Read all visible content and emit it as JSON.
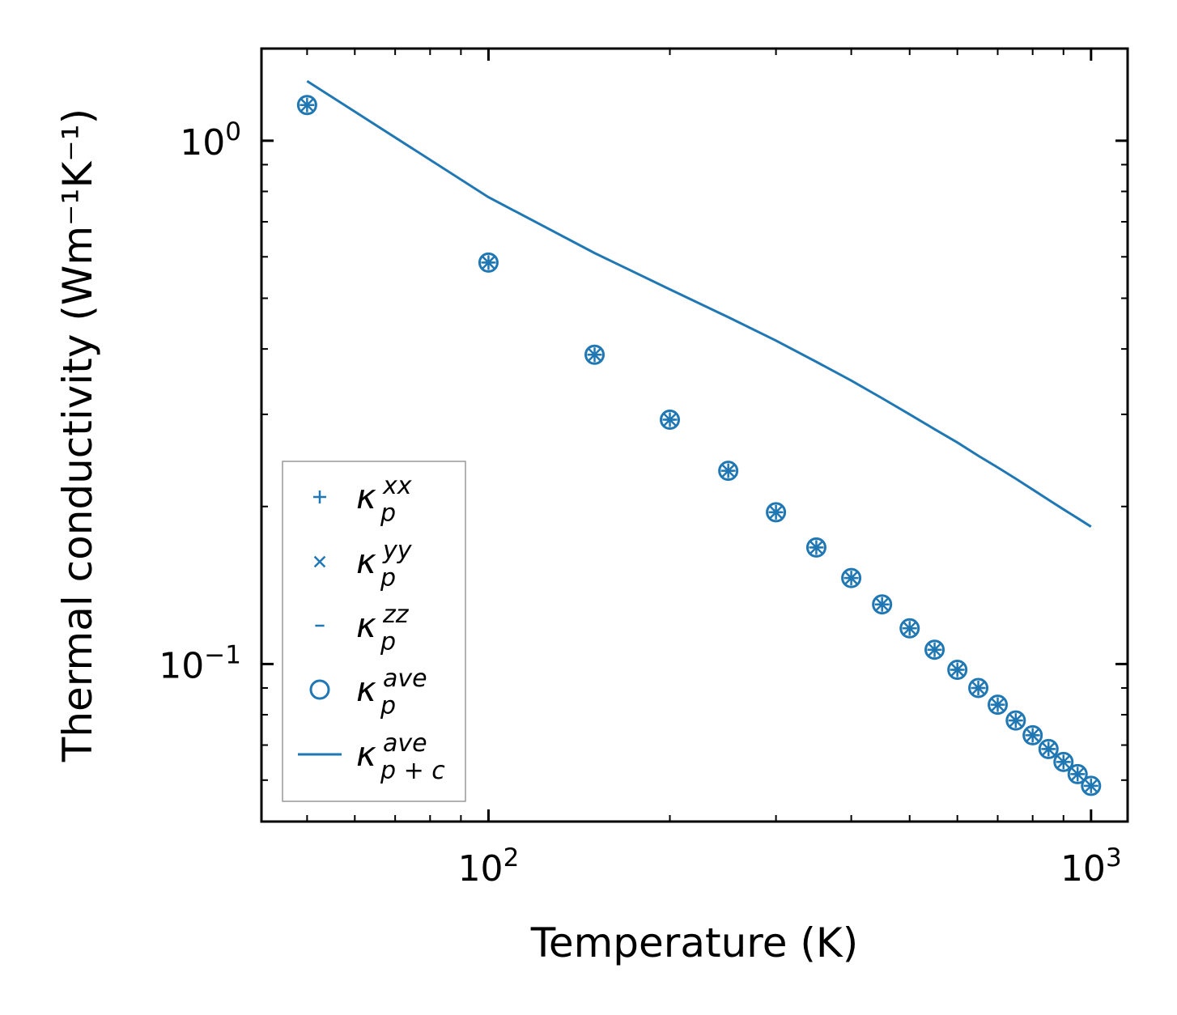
{
  "chart_data": {
    "type": "scatter",
    "xscale": "log",
    "yscale": "log",
    "xlabel": "Temperature (K)",
    "ylabel": "Thermal conductivity (Wm⁻¹K⁻¹)",
    "xlim": [
      42,
      1150
    ],
    "ylim": [
      0.05,
      1.5
    ],
    "x_ticks": [
      {
        "value": 100,
        "base": "10",
        "exp": "2"
      },
      {
        "value": 1000,
        "base": "10",
        "exp": "3"
      }
    ],
    "y_ticks": [
      {
        "value": 1,
        "base": "10",
        "exp": "0"
      },
      {
        "value": 0.1,
        "base": "10",
        "exp": "−1"
      }
    ],
    "x": [
      50,
      100,
      150,
      200,
      250,
      300,
      350,
      400,
      450,
      500,
      550,
      600,
      650,
      700,
      750,
      800,
      850,
      900,
      950,
      1000
    ],
    "series": [
      {
        "name": "kappa_p_xx",
        "marker": "plus",
        "values": [
          1.17,
          0.585,
          0.39,
          0.293,
          0.234,
          0.195,
          0.167,
          0.146,
          0.13,
          0.117,
          0.1065,
          0.0975,
          0.09,
          0.0836,
          0.078,
          0.0731,
          0.0688,
          0.065,
          0.0616,
          0.0585
        ]
      },
      {
        "name": "kappa_p_yy",
        "marker": "x",
        "values": [
          1.17,
          0.585,
          0.39,
          0.293,
          0.234,
          0.195,
          0.167,
          0.146,
          0.13,
          0.117,
          0.1065,
          0.0975,
          0.09,
          0.0836,
          0.078,
          0.0731,
          0.0688,
          0.065,
          0.0616,
          0.0585
        ]
      },
      {
        "name": "kappa_p_zz",
        "marker": "dash",
        "values": [
          1.17,
          0.585,
          0.39,
          0.293,
          0.234,
          0.195,
          0.167,
          0.146,
          0.13,
          0.117,
          0.1065,
          0.0975,
          0.09,
          0.0836,
          0.078,
          0.0731,
          0.0688,
          0.065,
          0.0616,
          0.0585
        ]
      },
      {
        "name": "kappa_p_ave",
        "marker": "circle",
        "values": [
          1.17,
          0.585,
          0.39,
          0.293,
          0.234,
          0.195,
          0.167,
          0.146,
          0.13,
          0.117,
          0.1065,
          0.0975,
          0.09,
          0.0836,
          0.078,
          0.0731,
          0.0688,
          0.065,
          0.0616,
          0.0585
        ]
      },
      {
        "name": "kappa_pc_ave",
        "marker": "line",
        "values": [
          1.3,
          0.78,
          0.61,
          0.52,
          0.46,
          0.415,
          0.378,
          0.348,
          0.322,
          0.3,
          0.281,
          0.265,
          0.25,
          0.2375,
          0.226,
          0.2155,
          0.206,
          0.1975,
          0.19,
          0.183
        ]
      }
    ],
    "legend": {
      "placement": "lower-left",
      "entries": [
        {
          "marker": "plus",
          "base": "κ",
          "sup": "xx",
          "sub": "p"
        },
        {
          "marker": "x",
          "base": "κ",
          "sup": "yy",
          "sub": "p"
        },
        {
          "marker": "dash",
          "base": "κ",
          "sup": "zz",
          "sub": "p"
        },
        {
          "marker": "circle",
          "base": "κ",
          "sup": "ave",
          "sub": "p"
        },
        {
          "marker": "line",
          "base": "κ",
          "sup": "ave",
          "sub": "p + c"
        }
      ]
    },
    "color": "#1f77b4",
    "grid": false
  }
}
